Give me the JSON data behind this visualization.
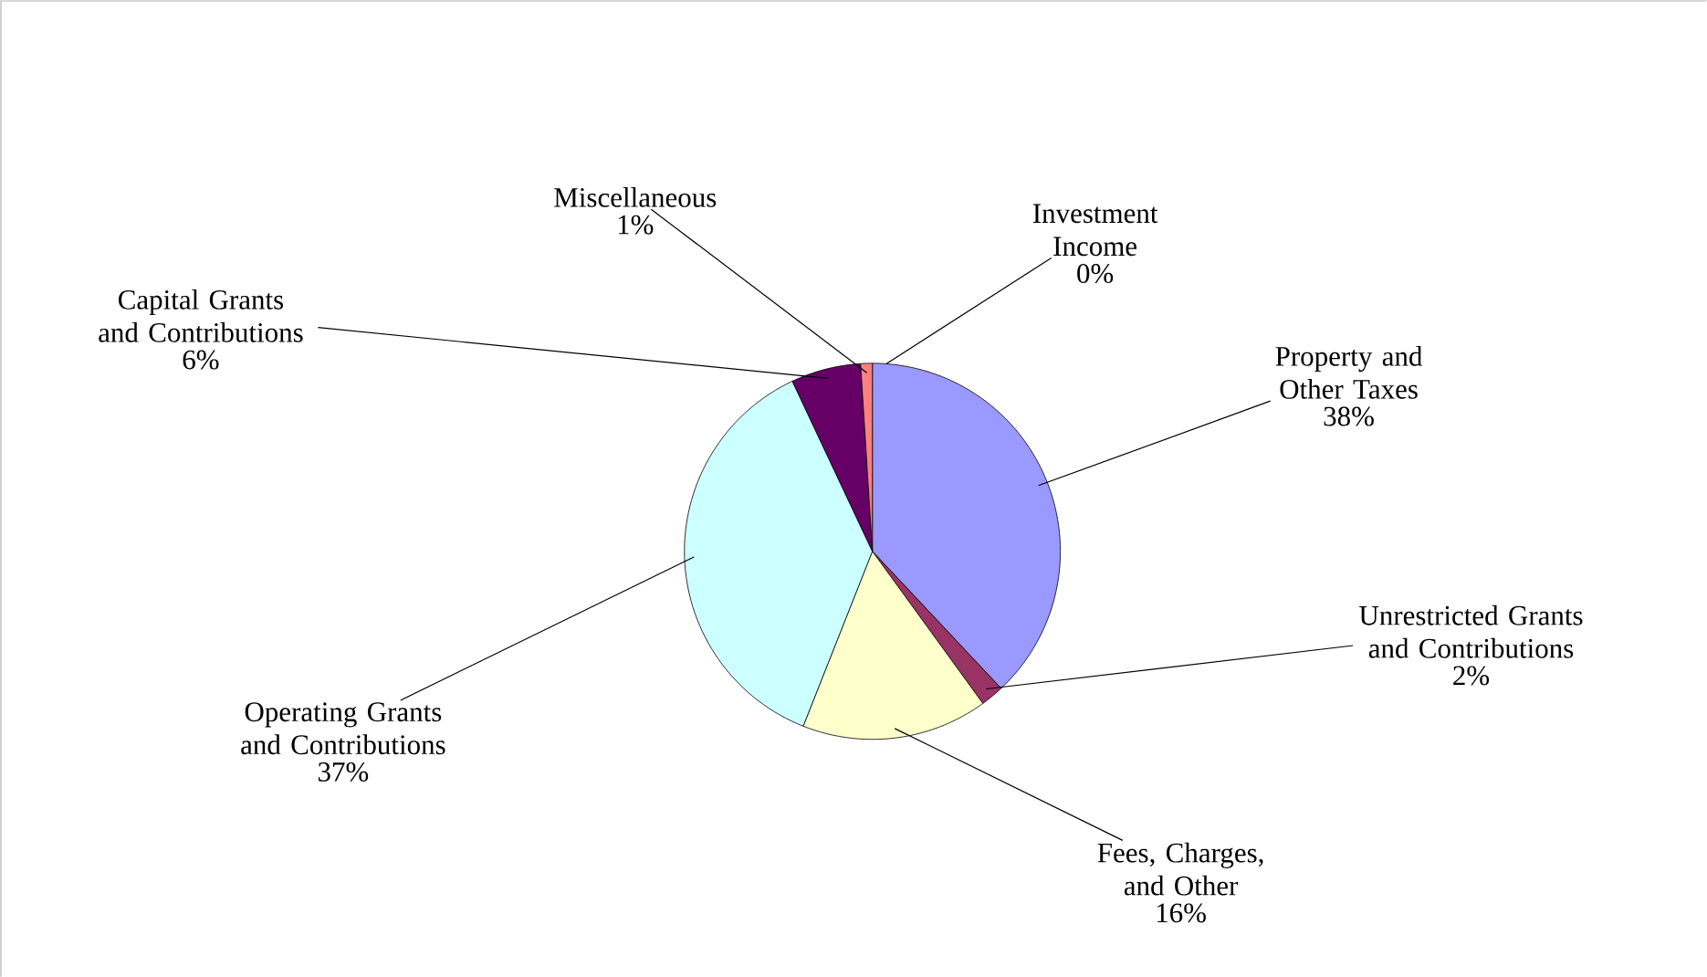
{
  "chart_data": {
    "type": "pie",
    "categories": [
      "Investment Income",
      "Property and Other Taxes",
      "Unrestricted Grants and Contributions",
      "Fees, Charges, and Other",
      "Operating Grants and Contributions",
      "Capital Grants and Contributions",
      "Miscellaneous"
    ],
    "values": [
      0,
      38,
      2,
      16,
      37,
      6,
      1
    ],
    "colors": [
      "#000080",
      "#9999ff",
      "#993366",
      "#ffffcc",
      "#ccffff",
      "#660066",
      "#ff8080"
    ],
    "value_labels": [
      "0%",
      "38%",
      "2%",
      "16%",
      "37%",
      "6%",
      "1%"
    ]
  }
}
